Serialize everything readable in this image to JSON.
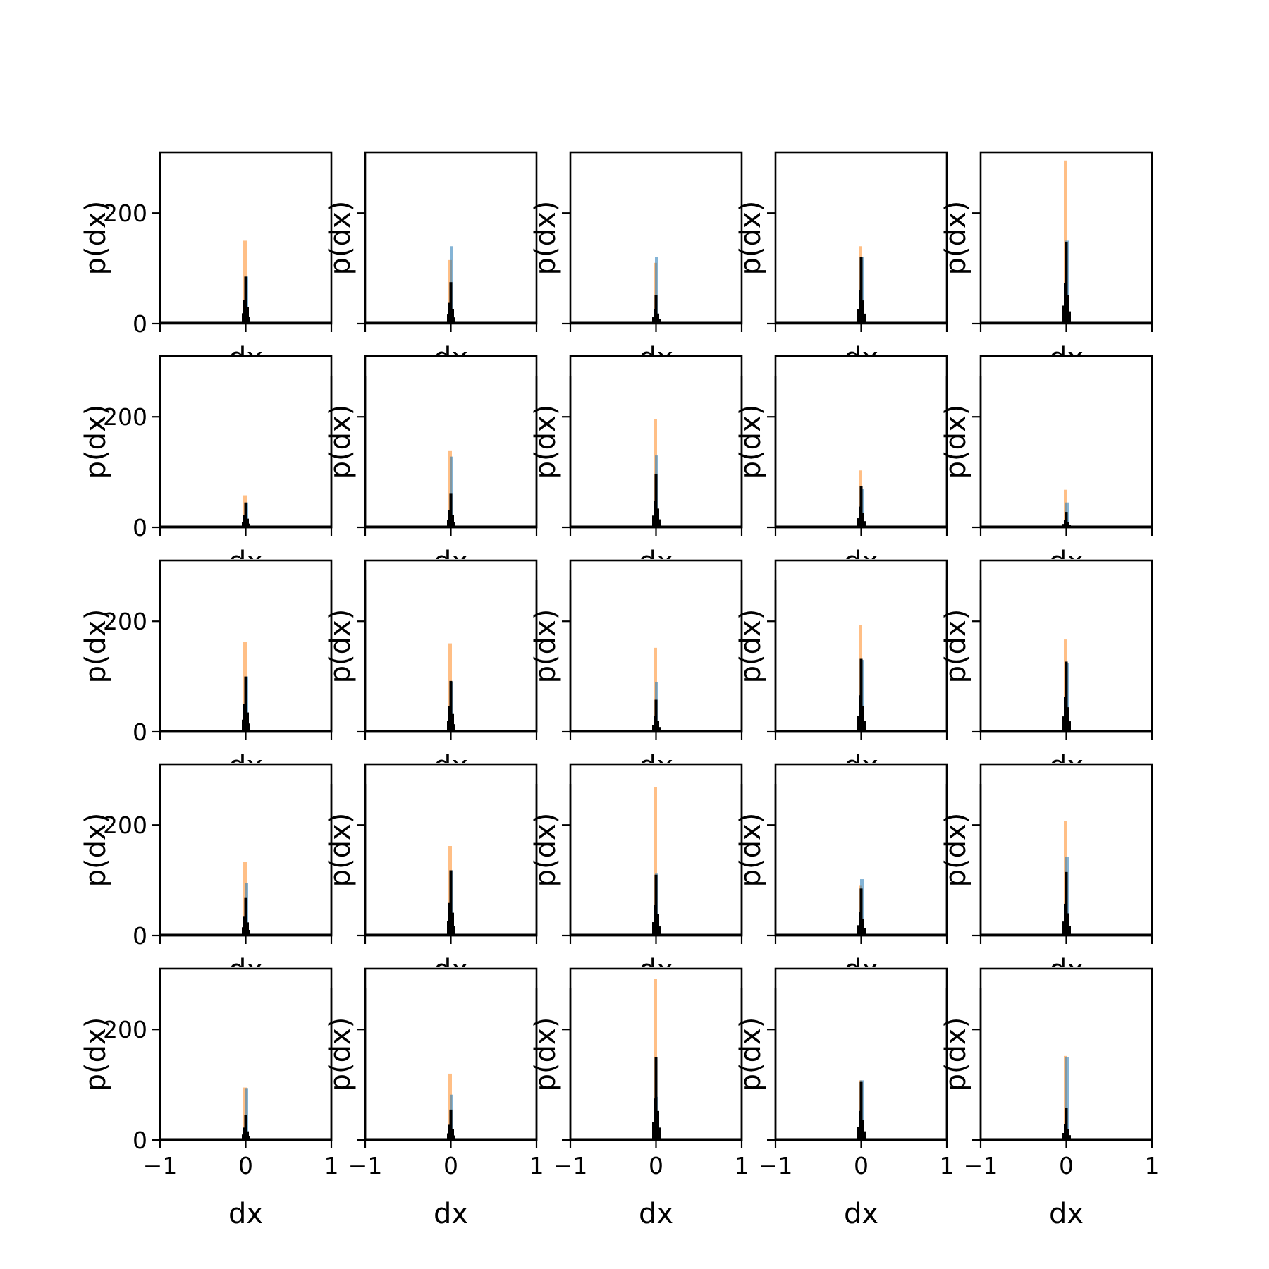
{
  "chart_data": {
    "type": "histogram-grid",
    "rows": 5,
    "cols": 5,
    "xlabel": "dx",
    "ylabel": "p(dx)",
    "xlim": [
      -1,
      1
    ],
    "ylim": [
      0,
      310
    ],
    "xticks": [
      -1,
      0,
      1
    ],
    "xtick_labels": [
      "−1",
      "0",
      "1"
    ],
    "yticks": [
      0,
      200
    ],
    "ytick_labels": [
      "0",
      "200"
    ],
    "colors": {
      "blue": "#1f77b4",
      "orange": "#ff7f0e",
      "black": "#000000"
    },
    "panels": [
      {
        "blue": 85,
        "orange": 150,
        "black": 85
      },
      {
        "blue": 140,
        "orange": 115,
        "black": 75
      },
      {
        "blue": 120,
        "orange": 110,
        "black": 52
      },
      {
        "blue": 120,
        "orange": 140,
        "black": 120
      },
      {
        "blue": 150,
        "orange": 295,
        "black": 148
      },
      {
        "blue": 45,
        "orange": 58,
        "black": 45
      },
      {
        "blue": 128,
        "orange": 138,
        "black": 62
      },
      {
        "blue": 130,
        "orange": 196,
        "black": 97
      },
      {
        "blue": 70,
        "orange": 103,
        "black": 75
      },
      {
        "blue": 45,
        "orange": 68,
        "black": 28
      },
      {
        "blue": 100,
        "orange": 162,
        "black": 100
      },
      {
        "blue": 90,
        "orange": 160,
        "black": 92
      },
      {
        "blue": 90,
        "orange": 152,
        "black": 58
      },
      {
        "blue": 130,
        "orange": 193,
        "black": 132
      },
      {
        "blue": 125,
        "orange": 167,
        "black": 127
      },
      {
        "blue": 95,
        "orange": 133,
        "black": 68
      },
      {
        "blue": 118,
        "orange": 162,
        "black": 118
      },
      {
        "blue": 112,
        "orange": 268,
        "black": 110
      },
      {
        "blue": 102,
        "orange": 90,
        "black": 85
      },
      {
        "blue": 142,
        "orange": 207,
        "black": 115
      },
      {
        "blue": 94,
        "orange": 95,
        "black": 45
      },
      {
        "blue": 82,
        "orange": 120,
        "black": 55
      },
      {
        "blue": 78,
        "orange": 292,
        "black": 150
      },
      {
        "blue": 108,
        "orange": 108,
        "black": 105
      },
      {
        "blue": 150,
        "orange": 152,
        "black": 58
      }
    ]
  }
}
